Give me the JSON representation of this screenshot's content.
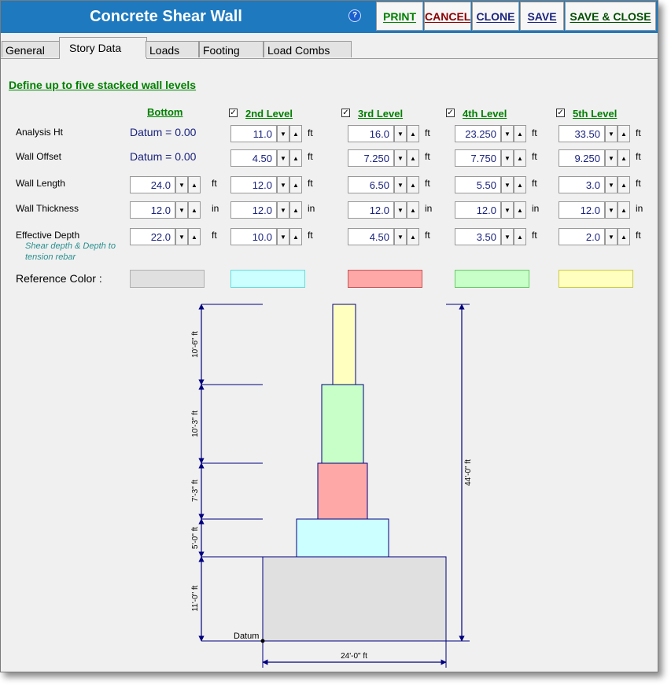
{
  "window": {
    "title": "Concrete Shear Wall",
    "help_label": "?"
  },
  "toolbar": {
    "print": "PRINT",
    "cancel": "CANCEL",
    "clone": "CLONE",
    "save": "SAVE",
    "save_close": "SAVE & CLOSE"
  },
  "tabs": [
    "General",
    "Story Data",
    "Loads",
    "Footing",
    "Load Combs"
  ],
  "heading": "Define up to five stacked wall levels",
  "bottom_label": "Bottom",
  "levels": [
    {
      "label": "2nd Level",
      "checked": true
    },
    {
      "label": "3rd Level",
      "checked": true
    },
    {
      "label": "4th Level",
      "checked": true
    },
    {
      "label": "5th Level",
      "checked": true
    }
  ],
  "rows": {
    "analysis_ht": {
      "label": "Analysis Ht",
      "bottom": "Datum = 0.00",
      "unit": "ft",
      "values": [
        "11.0",
        "16.0",
        "23.250",
        "33.50"
      ]
    },
    "wall_offset": {
      "label": "Wall Offset",
      "bottom": "Datum = 0.00",
      "unit": "ft",
      "values": [
        "4.50",
        "7.250",
        "7.750",
        "9.250"
      ]
    },
    "wall_length": {
      "label": "Wall Length",
      "unit": "ft",
      "values": [
        "24.0",
        "12.0",
        "6.50",
        "5.50",
        "3.0"
      ]
    },
    "wall_thickness": {
      "label": "Wall Thickness",
      "unit": "in",
      "values": [
        "12.0",
        "12.0",
        "12.0",
        "12.0",
        "12.0"
      ]
    },
    "effective_depth": {
      "label": "Effective Depth",
      "unit": "ft",
      "note": "Shear depth & Depth to tension rebar",
      "values": [
        "22.0",
        "10.0",
        "4.50",
        "3.50",
        "2.0"
      ]
    }
  },
  "reference_color": {
    "label": "Reference Color :",
    "colors": [
      {
        "fill": "#e0e0e0",
        "border": "#b0b0b0"
      },
      {
        "fill": "#ccffff",
        "border": "#66dddd"
      },
      {
        "fill": "#ffa8a8",
        "border": "#cc5555"
      },
      {
        "fill": "#c8ffc8",
        "border": "#66cc66"
      },
      {
        "fill": "#ffffc0",
        "border": "#cccc44"
      }
    ]
  },
  "diagram": {
    "datum_label": "Datum",
    "total_height_label": "44'-0\" ft",
    "width_label": "24'-0\" ft",
    "level_dims": [
      "11'-0\" ft",
      "5'-0\" ft",
      "7'-3\" ft",
      "10'-3\" ft",
      "10'-6\" ft"
    ]
  },
  "colors": {
    "title_bar": "#1e79bf",
    "label_green": "#008000",
    "value_navy": "#1a237e",
    "dimension_navy": "#000080"
  }
}
